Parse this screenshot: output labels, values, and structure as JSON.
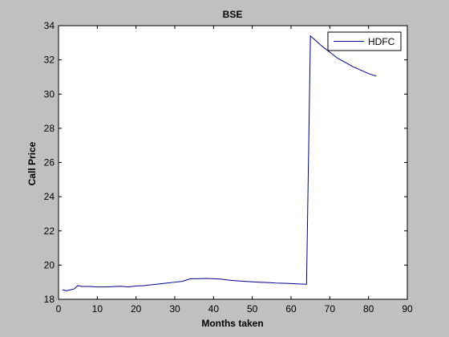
{
  "chart_data": {
    "type": "line",
    "title": "BSE",
    "xlabel": "Months taken",
    "ylabel": "Call Price",
    "xlim": [
      0,
      90
    ],
    "ylim": [
      18,
      34
    ],
    "xticks": [
      0,
      10,
      20,
      30,
      40,
      50,
      60,
      70,
      80,
      90
    ],
    "yticks": [
      18,
      20,
      22,
      24,
      26,
      28,
      30,
      32,
      34
    ],
    "grid": false,
    "legend": {
      "position": "top-right"
    },
    "colors": {
      "figure_bg": "#c0c0c0",
      "axes_bg": "#ffffff",
      "line": "#00008b"
    },
    "series": [
      {
        "name": "HDFC",
        "x": [
          1,
          2,
          3,
          4,
          5,
          6,
          8,
          10,
          12,
          14,
          16,
          18,
          20,
          22,
          24,
          26,
          28,
          30,
          32,
          34,
          36,
          38,
          40,
          42,
          44,
          46,
          48,
          50,
          52,
          54,
          56,
          58,
          60,
          62,
          64,
          65,
          66,
          68,
          70,
          72,
          74,
          76,
          78,
          80,
          82
        ],
        "y": [
          18.55,
          18.5,
          18.55,
          18.6,
          18.8,
          18.75,
          18.75,
          18.72,
          18.72,
          18.74,
          18.76,
          18.72,
          18.78,
          18.8,
          18.85,
          18.9,
          18.95,
          19.0,
          19.05,
          19.2,
          19.2,
          19.22,
          19.2,
          19.18,
          19.12,
          19.08,
          19.05,
          19.02,
          19.0,
          18.98,
          18.95,
          18.94,
          18.92,
          18.9,
          18.88,
          33.4,
          33.2,
          32.8,
          32.45,
          32.1,
          31.85,
          31.6,
          31.4,
          31.2,
          31.05
        ]
      }
    ]
  }
}
